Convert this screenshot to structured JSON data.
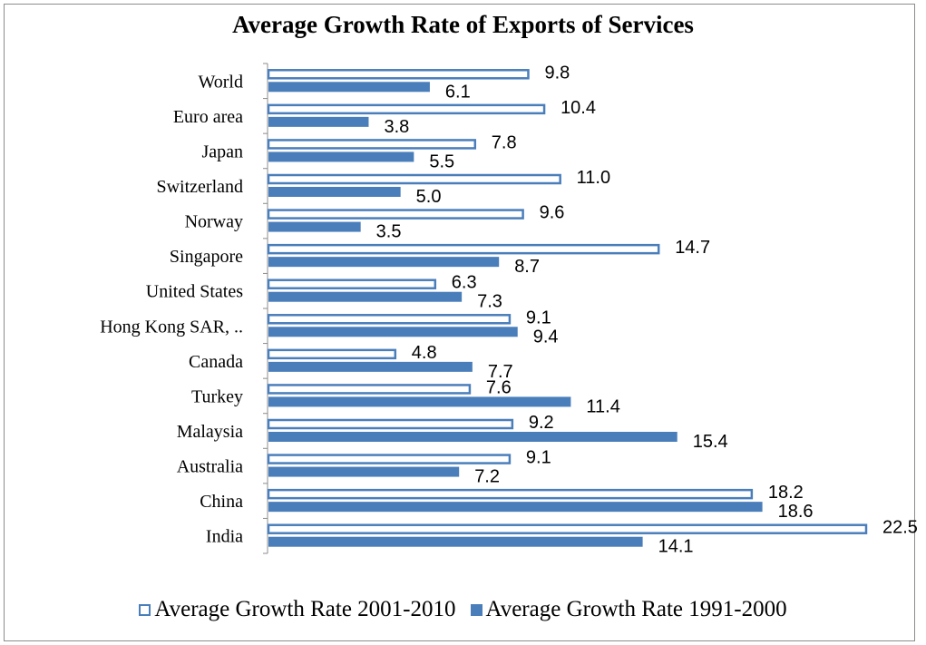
{
  "chart_data": {
    "type": "bar",
    "orientation": "horizontal",
    "title": "Average Growth Rate of Exports of Services",
    "categories": [
      "World",
      "Euro area",
      "Japan",
      "Switzerland",
      "Norway",
      "Singapore",
      "United States",
      "Hong Kong SAR, ..",
      "Canada",
      "Turkey",
      "Malaysia",
      "Australia",
      "China",
      "India"
    ],
    "series": [
      {
        "name": "Average Growth Rate 2001-2010",
        "values": [
          9.8,
          10.4,
          7.8,
          11.0,
          9.6,
          14.7,
          6.3,
          9.1,
          4.8,
          7.6,
          9.2,
          9.1,
          18.2,
          22.5
        ],
        "labels": [
          "9.8",
          "10.4",
          "7.8",
          "11.0",
          "9.6",
          "14.7",
          "6.3",
          "9.1",
          "4.8",
          "7.6",
          "9.2",
          "9.1",
          "18.2",
          "22.5"
        ],
        "style": "outline",
        "color": "#4a7ebb"
      },
      {
        "name": "Average Growth Rate 1991-2000",
        "values": [
          6.1,
          3.8,
          5.5,
          5.0,
          3.5,
          8.7,
          7.3,
          9.4,
          7.7,
          11.4,
          15.4,
          7.2,
          18.6,
          14.1
        ],
        "labels": [
          "6.1",
          "3.8",
          "5.5",
          "5.0",
          "3.5",
          "8.7",
          "7.3",
          "9.4",
          "7.7",
          "11.4",
          "15.4",
          "7.2",
          "18.6",
          "14.1"
        ],
        "style": "solid",
        "color": "#4a7ebb"
      }
    ],
    "xlim": [
      0,
      22.5
    ],
    "grid": false,
    "legend_position": "bottom"
  }
}
